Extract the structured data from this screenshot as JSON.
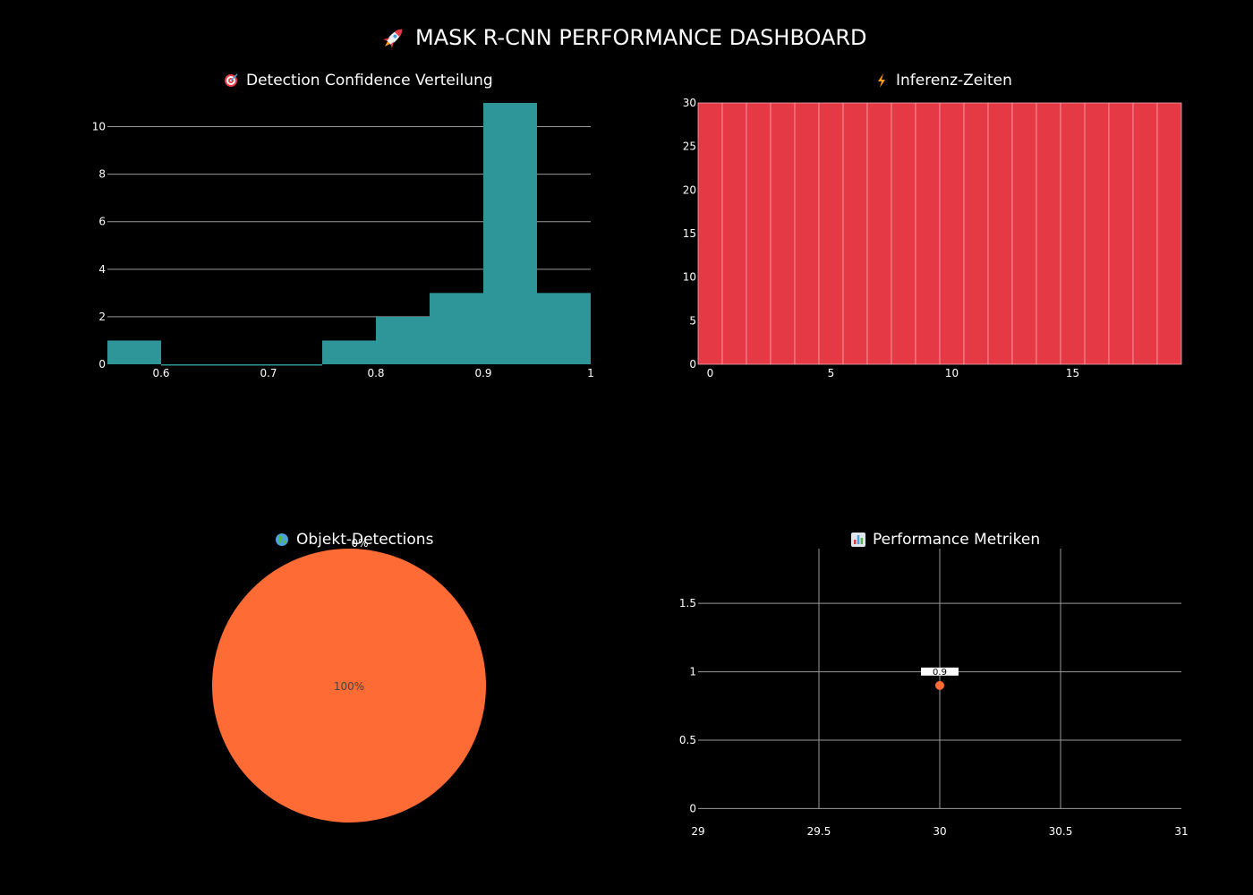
{
  "dashboard": {
    "title": "MASK R-CNN PERFORMANCE DASHBOARD",
    "title_icon": "rocket-icon",
    "background": "#000000"
  },
  "chart_data": [
    {
      "id": "confidence",
      "type": "bar",
      "title": "Detection Confidence Verteilung",
      "title_icon": "target-icon",
      "color": "#2e9599",
      "bin_edges": [
        0.55,
        0.6,
        0.65,
        0.7,
        0.75,
        0.8,
        0.85,
        0.9,
        0.95,
        1.0
      ],
      "values": [
        1,
        0,
        0,
        0,
        1,
        2,
        3,
        11,
        3
      ],
      "xlim": [
        0.55,
        1.0
      ],
      "ylim": [
        0,
        11
      ],
      "xticks": [
        0.6,
        0.7,
        0.8,
        0.9,
        1
      ],
      "xtick_labels": [
        "0.6",
        "0.7",
        "0.8",
        "0.9",
        "1"
      ],
      "yticks": [
        0,
        2,
        4,
        6,
        8,
        10
      ],
      "ytick_labels": [
        "0",
        "2",
        "4",
        "6",
        "8",
        "10"
      ],
      "grid": true
    },
    {
      "id": "inference",
      "type": "bar",
      "title": "Inferenz-Zeiten",
      "title_icon": "lightning-icon",
      "color": "#e63946",
      "x": [
        0,
        1,
        2,
        3,
        4,
        5,
        6,
        7,
        8,
        9,
        10,
        11,
        12,
        13,
        14,
        15,
        16,
        17,
        18,
        19
      ],
      "values": [
        30,
        30,
        30,
        30,
        30,
        30,
        30,
        30,
        30,
        30,
        30,
        30,
        30,
        30,
        30,
        30,
        30,
        30,
        30,
        30
      ],
      "xlim": [
        -0.5,
        19.5
      ],
      "ylim": [
        0,
        30
      ],
      "xticks": [
        0,
        5,
        10,
        15
      ],
      "xtick_labels": [
        "0",
        "5",
        "10",
        "15"
      ],
      "yticks": [
        0,
        5,
        10,
        15,
        20,
        25,
        30
      ],
      "ytick_labels": [
        "0",
        "5",
        "10",
        "15",
        "20",
        "25",
        "30"
      ]
    },
    {
      "id": "objects",
      "type": "pie",
      "title": "Objekt-Detections",
      "title_icon": "globe-icon",
      "slices": [
        {
          "value": 100,
          "label": "100%",
          "color": "#ff6b35"
        },
        {
          "value": 0,
          "label": "0%",
          "color": "#2e9599"
        }
      ]
    },
    {
      "id": "metrics",
      "type": "scatter",
      "title": "Performance Metriken",
      "title_icon": "bar-chart-icon",
      "color": "#ff6b35",
      "points": [
        {
          "x": 30,
          "y": 0.9
        }
      ],
      "point_label": "0.9",
      "xlim": [
        29,
        31
      ],
      "ylim": [
        -0.2,
        1.9
      ],
      "xticks": [
        29,
        29.5,
        30,
        30.5,
        31
      ],
      "xtick_labels": [
        "29",
        "29.5",
        "30",
        "30.5",
        "31"
      ],
      "yticks": [
        0,
        0.5,
        1,
        1.5
      ],
      "ytick_labels": [
        "0",
        "0.5",
        "1",
        "1.5"
      ],
      "grid": true
    }
  ]
}
